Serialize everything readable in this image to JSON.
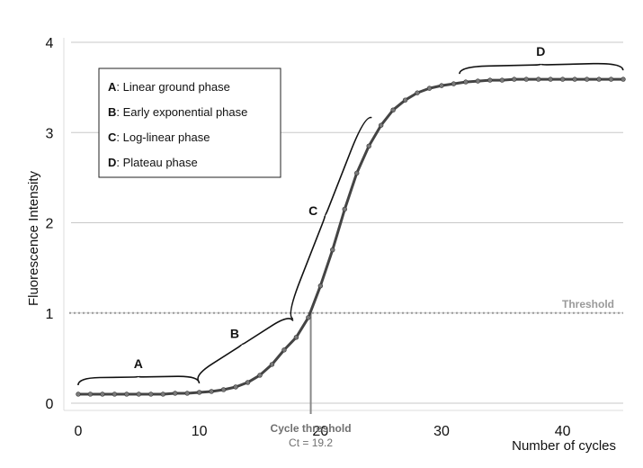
{
  "chart_data": {
    "type": "line",
    "title": "",
    "xlabel": "Number of cycles",
    "ylabel": "Fluorescence Intensity",
    "xlim": [
      0,
      45
    ],
    "ylim": [
      0,
      4
    ],
    "x_ticks": [
      0,
      10,
      20,
      30,
      40
    ],
    "y_ticks": [
      0,
      1,
      2,
      3,
      4
    ],
    "grid": "horizontal",
    "series": [
      {
        "name": "",
        "color": "#444444",
        "x": [
          0,
          1,
          2,
          3,
          4,
          5,
          6,
          7,
          8,
          9,
          10,
          11,
          12,
          13,
          14,
          15,
          16,
          17,
          18,
          19,
          20,
          21,
          22,
          23,
          24,
          25,
          26,
          27,
          28,
          29,
          30,
          31,
          32,
          33,
          34,
          35,
          36,
          37,
          38,
          39,
          40,
          41,
          42,
          43,
          44,
          45
        ],
        "y": [
          0.1,
          0.1,
          0.1,
          0.1,
          0.1,
          0.1,
          0.1,
          0.1,
          0.11,
          0.11,
          0.12,
          0.13,
          0.15,
          0.18,
          0.23,
          0.31,
          0.43,
          0.59,
          0.73,
          0.95,
          1.3,
          1.7,
          2.15,
          2.55,
          2.85,
          3.08,
          3.25,
          3.36,
          3.44,
          3.49,
          3.52,
          3.54,
          3.56,
          3.57,
          3.58,
          3.58,
          3.59,
          3.59,
          3.59,
          3.59,
          3.59,
          3.59,
          3.59,
          3.59,
          3.59,
          3.59
        ]
      }
    ],
    "threshold": {
      "label": "Threshold",
      "y": 1
    },
    "cycle_threshold": {
      "label": "Cycle threshold",
      "value_text": "Ct = 19.2",
      "x": 19.2
    },
    "legend": {
      "position": "top-left",
      "items": [
        {
          "letter": "A",
          "text": ": Linear ground phase"
        },
        {
          "letter": "B",
          "text": ": Early exponential phase"
        },
        {
          "letter": "C",
          "text": ": Log-linear phase"
        },
        {
          "letter": "D",
          "text": ": Plateau phase"
        }
      ]
    },
    "phases": [
      {
        "letter": "A",
        "x_start": 0,
        "x_end": 10
      },
      {
        "letter": "B",
        "x_start": 10.5,
        "x_end": 18.3
      },
      {
        "letter": "C",
        "x_start": 18.7,
        "x_end": 25.2
      },
      {
        "letter": "D",
        "x_start": 31.5,
        "x_end": 45
      }
    ]
  }
}
